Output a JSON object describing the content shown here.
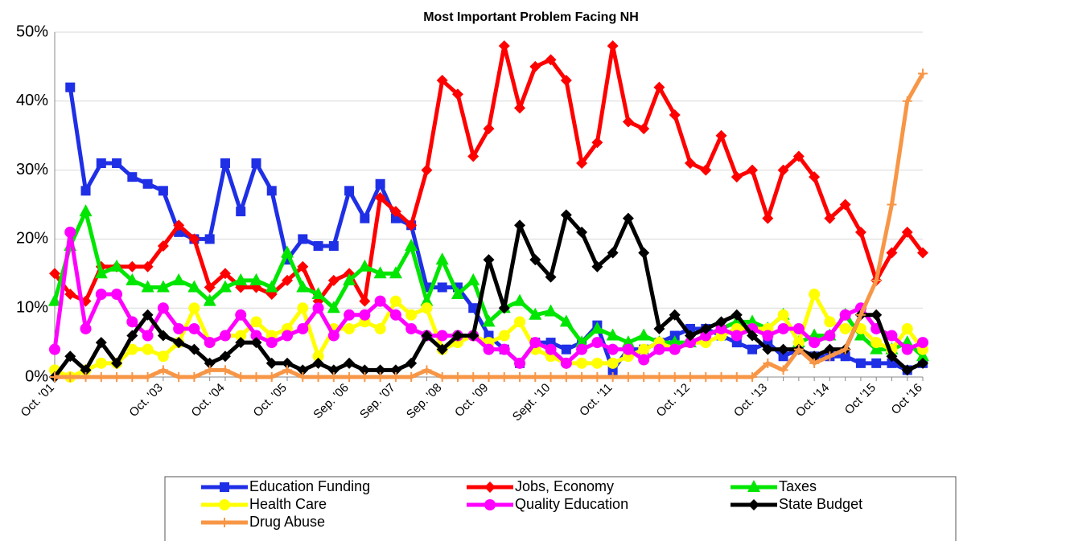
{
  "chart_data": {
    "type": "line",
    "title": "Most Important Problem Facing NH",
    "categories": [
      "Oct. '01",
      null,
      null,
      null,
      null,
      null,
      null,
      "Oct. '03",
      null,
      null,
      null,
      "Oct. '04",
      null,
      null,
      null,
      "Oct. '05",
      null,
      null,
      null,
      "Sep. '06",
      null,
      null,
      "Sep. '07",
      null,
      null,
      "Sep. '08",
      null,
      null,
      "Oct. '09",
      null,
      null,
      null,
      "Sept. '10",
      null,
      null,
      null,
      "Oct. '11",
      null,
      null,
      null,
      null,
      "Oct. '12",
      null,
      null,
      null,
      null,
      "Oct. '13",
      null,
      null,
      null,
      "Oct. '14",
      null,
      null,
      "Oct '15",
      null,
      null,
      "Oct '16"
    ],
    "ylim": [
      0,
      50
    ],
    "yticks": [
      {
        "value": 0,
        "label": "0%"
      },
      {
        "value": 10,
        "label": "10%"
      },
      {
        "value": 20,
        "label": "20%"
      },
      {
        "value": 30,
        "label": "30%"
      },
      {
        "value": 40,
        "label": "40%"
      },
      {
        "value": 50,
        "label": "50%"
      }
    ],
    "grid": true,
    "legend": "bottom",
    "series": [
      {
        "name": "Education Funding",
        "color": "#1f2fe6",
        "marker": "square",
        "values": [
          null,
          42,
          27,
          31,
          31,
          29,
          28,
          27,
          21,
          20,
          20,
          31,
          24,
          31,
          27,
          17,
          20,
          19,
          19,
          27,
          23,
          28,
          23,
          22,
          13,
          13,
          13,
          10,
          6,
          4,
          2,
          5,
          5,
          4,
          5,
          7.5,
          1,
          4,
          4,
          5,
          6,
          7,
          7,
          6,
          5,
          4,
          5,
          3,
          4,
          3,
          3,
          3,
          2,
          2,
          2,
          1,
          2
        ]
      },
      {
        "name": "Jobs, Economy",
        "color": "#ff0000",
        "marker": "diamond",
        "values": [
          15,
          12,
          11,
          16,
          16,
          16,
          16,
          19,
          22,
          20,
          13,
          15,
          13,
          13,
          12,
          14,
          16,
          11,
          14,
          15,
          11,
          26,
          24,
          22,
          30,
          43,
          41,
          32,
          36,
          48,
          39,
          45,
          46,
          43,
          31,
          34,
          48,
          37,
          36,
          42,
          38,
          31,
          30,
          35,
          29,
          30,
          23,
          30,
          32,
          29,
          23,
          25,
          21,
          14,
          18,
          21,
          18
        ]
      },
      {
        "name": "Taxes",
        "color": "#00e600",
        "marker": "triangle",
        "values": [
          11,
          19,
          24,
          15,
          16,
          14,
          13,
          13,
          14,
          13,
          11,
          13,
          14,
          14,
          13,
          18,
          13,
          12,
          10,
          14,
          16,
          15,
          15,
          19,
          11,
          17,
          12,
          14,
          8,
          10,
          11,
          9,
          9.5,
          8,
          5,
          7,
          6,
          5,
          6,
          5,
          5,
          5,
          6,
          7,
          8,
          8,
          7,
          9,
          5,
          6,
          6,
          9,
          6,
          4,
          4,
          5,
          3
        ]
      },
      {
        "name": "Health Care",
        "color": "#ffff00",
        "marker": "circle",
        "values": [
          1,
          0,
          1,
          2,
          2,
          4,
          4,
          3,
          5,
          10,
          5,
          6,
          6,
          8,
          6,
          7,
          10,
          3,
          7,
          7,
          8,
          7,
          11,
          9,
          10,
          4,
          5,
          6,
          5,
          6,
          8,
          4,
          3,
          2,
          2,
          2,
          2,
          3,
          4,
          5,
          4,
          5,
          5,
          6,
          7,
          7,
          7,
          9,
          5,
          12,
          8,
          7,
          7,
          5,
          4,
          7,
          4
        ]
      },
      {
        "name": "Quality Education",
        "color": "#ff00ff",
        "marker": "circle",
        "values": [
          4,
          21,
          7,
          12,
          12,
          8,
          6,
          10,
          7,
          7,
          5,
          6,
          9,
          6,
          5,
          6,
          7,
          10,
          6,
          9,
          9,
          11,
          9,
          7,
          6,
          6,
          6,
          6,
          4,
          4,
          2,
          5,
          4,
          2,
          4,
          5,
          4,
          4,
          2.5,
          4,
          4,
          5,
          6,
          7,
          6,
          7,
          6,
          7,
          7,
          5,
          6,
          9,
          10,
          7,
          6,
          4,
          5
        ]
      },
      {
        "name": "State Budget",
        "color": "#000000",
        "marker": "diamond",
        "values": [
          0,
          3,
          1,
          5,
          2,
          6,
          9,
          6,
          5,
          4,
          2,
          3,
          5,
          5,
          2,
          2,
          1,
          2,
          1,
          2,
          1,
          1,
          1,
          2,
          6,
          4,
          6,
          6,
          17,
          10,
          22,
          17,
          14.5,
          23.5,
          21,
          16,
          18,
          23,
          18,
          7,
          9,
          6,
          7,
          8,
          9,
          6,
          4,
          4,
          4,
          3,
          4,
          4,
          9,
          9,
          3,
          1,
          2
        ]
      },
      {
        "name": "Drug Abuse",
        "color": "#f79646",
        "marker": "plus",
        "values": [
          0,
          0,
          0,
          0,
          0,
          0,
          0,
          1,
          0,
          0,
          1,
          1,
          0,
          0,
          0,
          1,
          0,
          0,
          0,
          0,
          0,
          0,
          0,
          0,
          1,
          0,
          0,
          0,
          0,
          0,
          0,
          0,
          0,
          0,
          0,
          0,
          0,
          0,
          0,
          0,
          0,
          0,
          0,
          0,
          0,
          0,
          2,
          1,
          4,
          2,
          3,
          4,
          9,
          14,
          25,
          40,
          44
        ]
      }
    ]
  }
}
